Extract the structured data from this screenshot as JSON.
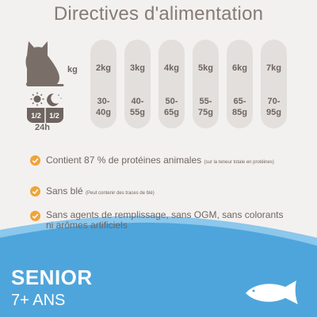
{
  "title": "Directives d'alimentation",
  "weight_unit": "kg",
  "feeding_fraction_left": "1/2",
  "feeding_fraction_right": "1/2",
  "feeding_period": "24h",
  "table": [
    {
      "weight": "2kg",
      "amount_top": "30-",
      "amount_bottom": "40g"
    },
    {
      "weight": "3kg",
      "amount_top": "40-",
      "amount_bottom": "55g"
    },
    {
      "weight": "4kg",
      "amount_top": "50-",
      "amount_bottom": "65g"
    },
    {
      "weight": "5kg",
      "amount_top": "55-",
      "amount_bottom": "75g"
    },
    {
      "weight": "6kg",
      "amount_top": "65-",
      "amount_bottom": "85g"
    },
    {
      "weight": "7kg",
      "amount_top": "70-",
      "amount_bottom": "95g"
    }
  ],
  "features": [
    {
      "text": "Contient 87 % de protéines animales",
      "note": "(sur la teneur totale en protéines)"
    },
    {
      "text": "Sans blé",
      "note": "(Peut contenir des traces de blé)"
    },
    {
      "text_line1": "Sans agents de remplissage, sans OGM, sans colorants",
      "text_line2": "ni arômes artificiels"
    }
  ],
  "life_stage": "SENIOR",
  "age": "7+ ANS",
  "colors": {
    "background": "#f3f1ef",
    "pill": "#e3dfdc",
    "text": "#6f6560",
    "check": "#f0a33a",
    "band": "#4ea5dc",
    "band_light": "#7fc0ea"
  },
  "icons": [
    "cat-icon",
    "sun-icon",
    "moon-icon",
    "check-icon",
    "fish-icon"
  ]
}
